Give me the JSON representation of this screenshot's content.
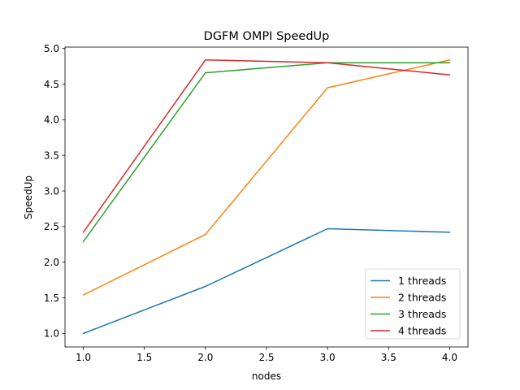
{
  "chart_data": {
    "type": "line",
    "title": "DGFM OMPI SpeedUp",
    "xlabel": "nodes",
    "ylabel": "SpeedUp",
    "x": [
      1.0,
      2.0,
      3.0,
      4.0
    ],
    "xlim": [
      0.85,
      4.15
    ],
    "ylim": [
      0.81,
      5.02
    ],
    "xticks": [
      1.0,
      1.5,
      2.0,
      2.5,
      3.0,
      3.5,
      4.0
    ],
    "xtick_labels": [
      "1.0",
      "1.5",
      "2.0",
      "2.5",
      "3.0",
      "3.5",
      "4.0"
    ],
    "yticks": [
      1.0,
      1.5,
      2.0,
      2.5,
      3.0,
      3.5,
      4.0,
      4.5,
      5.0
    ],
    "ytick_labels": [
      "1.0",
      "1.5",
      "2.0",
      "2.5",
      "3.0",
      "3.5",
      "4.0",
      "4.5",
      "5.0"
    ],
    "grid": false,
    "legend_position": "lower-right",
    "series": [
      {
        "name": "1 threads",
        "color": "#1f77b4",
        "values": [
          1.0,
          1.66,
          2.47,
          2.42
        ]
      },
      {
        "name": "2 threads",
        "color": "#ff7f0e",
        "values": [
          1.54,
          2.39,
          4.45,
          4.84
        ]
      },
      {
        "name": "3 threads",
        "color": "#2ca02c",
        "values": [
          2.29,
          4.66,
          4.8,
          4.8
        ]
      },
      {
        "name": "4 threads",
        "color": "#d62728",
        "values": [
          2.42,
          4.84,
          4.8,
          4.63
        ]
      }
    ]
  }
}
